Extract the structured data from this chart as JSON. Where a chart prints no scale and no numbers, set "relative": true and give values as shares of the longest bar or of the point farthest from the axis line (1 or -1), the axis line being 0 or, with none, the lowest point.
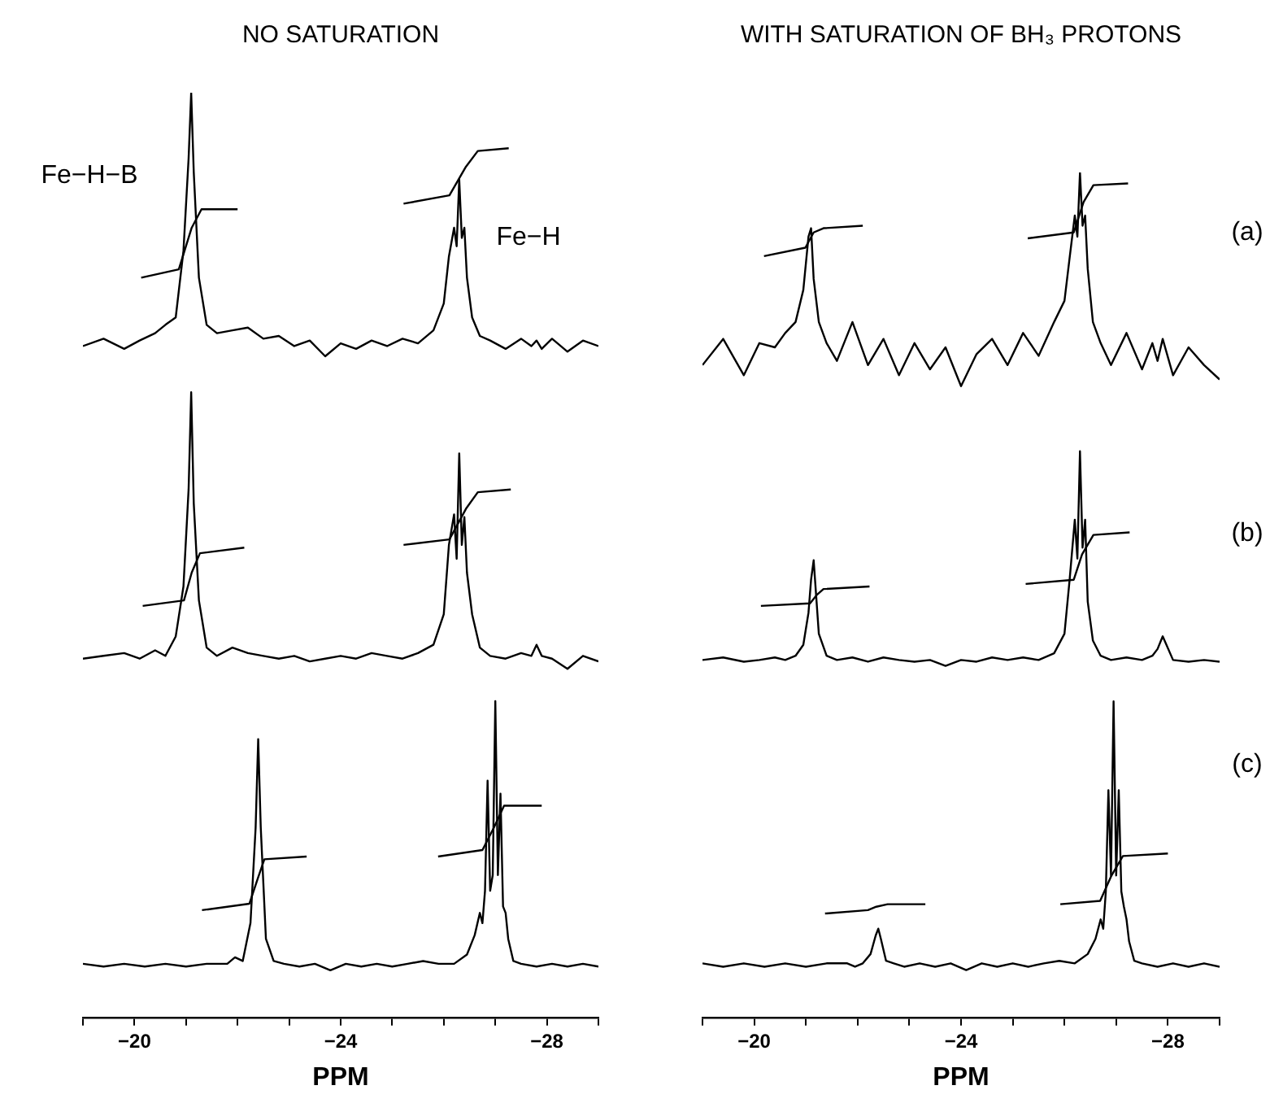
{
  "chart_data": [
    {
      "type": "line",
      "relative": true,
      "title": "NO SATURATION",
      "xlim": [
        -19,
        -29
      ],
      "xlabel": "PPM",
      "xticks": [
        {
          "value": -19,
          "label": null
        },
        -20,
        {
          "value": -21,
          "label": null
        },
        {
          "value": -22,
          "label": null
        },
        {
          "value": -23,
          "label": null
        },
        -24,
        {
          "value": -25,
          "label": null
        },
        {
          "value": -26,
          "label": null
        },
        {
          "value": -27,
          "label": null
        },
        -28,
        {
          "value": -29,
          "label": null
        }
      ],
      "x": [
        -19.0,
        -19.4,
        -19.8,
        -20.1,
        -20.4,
        -20.6,
        -20.8,
        -20.95,
        -21.05,
        -21.1,
        -21.15,
        -21.25,
        -21.4,
        -21.6,
        -21.9,
        -22.2,
        -22.5,
        -22.8,
        -23.1,
        -23.4,
        -23.7,
        -24.0,
        -24.3,
        -24.6,
        -24.9,
        -25.2,
        -25.5,
        -25.8,
        -26.0,
        -26.1,
        -26.2,
        -26.25,
        -26.3,
        -26.35,
        -26.4,
        -26.45,
        -26.55,
        -26.7,
        -26.9,
        -27.2,
        -27.5,
        -27.7,
        -27.8,
        -27.9,
        -28.1,
        -28.4,
        -28.7,
        -29.0
      ],
      "annotations": [
        "Fe−H−B",
        "Fe−H"
      ],
      "series": [
        {
          "color": "#000000",
          "values": [
            0.726,
            0.734,
            0.723,
            0.732,
            0.74,
            0.749,
            0.757,
            0.829,
            0.929,
            1.0,
            0.914,
            0.8,
            0.749,
            0.74,
            0.743,
            0.746,
            0.734,
            0.737,
            0.726,
            0.732,
            0.715,
            0.729,
            0.723,
            0.732,
            0.726,
            0.734,
            0.729,
            0.743,
            0.772,
            0.823,
            0.854,
            0.834,
            0.906,
            0.843,
            0.854,
            0.8,
            0.757,
            0.737,
            0.732,
            0.723,
            0.734,
            0.726,
            0.732,
            0.723,
            0.734,
            0.72,
            0.732,
            0.726
          ]
        },
        {
          "color": "#000000",
          "x": [
            -20.13,
            -20.86,
            -21.11,
            -21.3,
            -22.0
          ],
          "values": [
            0.8,
            0.809,
            0.854,
            0.874,
            0.874
          ]
        },
        {
          "color": "#000000",
          "x": [
            -25.22,
            -26.11,
            -26.43,
            -26.66,
            -27.26
          ],
          "values": [
            0.88,
            0.889,
            0.92,
            0.937,
            0.94
          ]
        },
        {
          "color": "#000000",
          "values": [
            0.388,
            0.391,
            0.394,
            0.388,
            0.397,
            0.391,
            0.412,
            0.466,
            0.571,
            0.676,
            0.556,
            0.451,
            0.4,
            0.391,
            0.4,
            0.394,
            0.391,
            0.388,
            0.391,
            0.385,
            0.388,
            0.391,
            0.388,
            0.394,
            0.391,
            0.388,
            0.394,
            0.403,
            0.436,
            0.511,
            0.544,
            0.496,
            0.61,
            0.511,
            0.541,
            0.481,
            0.436,
            0.4,
            0.391,
            0.388,
            0.394,
            0.391,
            0.403,
            0.391,
            0.388,
            0.377,
            0.391,
            0.385
          ]
        },
        {
          "color": "#000000",
          "x": [
            -20.16,
            -20.96,
            -21.11,
            -21.27,
            -22.13
          ],
          "values": [
            0.445,
            0.451,
            0.481,
            0.502,
            0.508
          ]
        },
        {
          "color": "#000000",
          "x": [
            -25.22,
            -26.11,
            -26.43,
            -26.66,
            -27.3
          ],
          "values": [
            0.511,
            0.517,
            0.55,
            0.568,
            0.571
          ]
        },
        {
          "color": "#000000",
          "x": [
            -19.0,
            -19.4,
            -19.8,
            -20.2,
            -20.6,
            -21.0,
            -21.4,
            -21.8,
            -21.95,
            -22.1,
            -22.25,
            -22.35,
            -22.4,
            -22.45,
            -22.55,
            -22.7,
            -22.9,
            -23.2,
            -23.5,
            -23.8,
            -24.1,
            -24.4,
            -24.7,
            -25.0,
            -25.3,
            -25.6,
            -25.9,
            -26.2,
            -26.45,
            -26.6,
            -26.7,
            -26.75,
            -26.8,
            -26.85,
            -26.9,
            -26.95,
            -27.0,
            -27.05,
            -27.1,
            -27.15,
            -27.2,
            -27.25,
            -27.35,
            -27.5,
            -27.8,
            -28.1,
            -28.4,
            -28.7,
            -29.0
          ],
          "values": [
            0.058,
            0.055,
            0.058,
            0.055,
            0.058,
            0.055,
            0.058,
            0.058,
            0.065,
            0.061,
            0.102,
            0.205,
            0.301,
            0.205,
            0.085,
            0.061,
            0.058,
            0.055,
            0.058,
            0.051,
            0.058,
            0.055,
            0.058,
            0.055,
            0.058,
            0.061,
            0.058,
            0.058,
            0.068,
            0.089,
            0.113,
            0.102,
            0.137,
            0.256,
            0.137,
            0.154,
            0.342,
            0.154,
            0.242,
            0.12,
            0.113,
            0.085,
            0.061,
            0.058,
            0.055,
            0.058,
            0.055,
            0.058,
            0.055
          ]
        },
        {
          "color": "#000000",
          "x": [
            -21.31,
            -22.23,
            -22.39,
            -22.52,
            -23.34
          ],
          "values": [
            0.116,
            0.123,
            0.15,
            0.171,
            0.174
          ]
        },
        {
          "color": "#000000",
          "x": [
            -25.89,
            -26.75,
            -26.97,
            -27.17,
            -27.9
          ],
          "values": [
            0.174,
            0.181,
            0.205,
            0.229,
            0.229
          ]
        }
      ]
    },
    {
      "type": "line",
      "relative": true,
      "title": "WITH SATURATION OF BH₃ PROTONS",
      "xlim": [
        -19,
        -29
      ],
      "xlabel": "PPM",
      "xticks": [
        {
          "value": -19,
          "label": null
        },
        -20,
        {
          "value": -21,
          "label": null
        },
        {
          "value": -22,
          "label": null
        },
        {
          "value": -23,
          "label": null
        },
        -24,
        {
          "value": -25,
          "label": null
        },
        {
          "value": -26,
          "label": null
        },
        {
          "value": -27,
          "label": null
        },
        -28,
        {
          "value": -29,
          "label": null
        }
      ],
      "x": [
        -19.0,
        -19.4,
        -19.8,
        -20.1,
        -20.4,
        -20.6,
        -20.8,
        -20.95,
        -21.05,
        -21.1,
        -21.15,
        -21.25,
        -21.4,
        -21.6,
        -21.9,
        -22.2,
        -22.5,
        -22.8,
        -23.1,
        -23.4,
        -23.7,
        -24.0,
        -24.3,
        -24.6,
        -24.9,
        -25.2,
        -25.5,
        -25.8,
        -26.0,
        -26.1,
        -26.2,
        -26.25,
        -26.3,
        -26.35,
        -26.4,
        -26.45,
        -26.55,
        -26.7,
        -26.9,
        -27.2,
        -27.5,
        -27.7,
        -27.8,
        -27.9,
        -28.1,
        -28.4,
        -28.7,
        -29.0
      ],
      "annotations": [
        "(a)",
        "(b)",
        "(c)"
      ],
      "series": [
        {
          "color": "#000000",
          "values": [
            0.772,
            0.803,
            0.76,
            0.798,
            0.793,
            0.81,
            0.823,
            0.861,
            0.924,
            0.934,
            0.874,
            0.823,
            0.798,
            0.777,
            0.823,
            0.772,
            0.803,
            0.76,
            0.798,
            0.767,
            0.793,
            0.747,
            0.785,
            0.803,
            0.772,
            0.81,
            0.783,
            0.823,
            0.848,
            0.899,
            0.949,
            0.924,
            1.0,
            0.937,
            0.949,
            0.886,
            0.823,
            0.798,
            0.772,
            0.81,
            0.767,
            0.798,
            0.777,
            0.803,
            0.76,
            0.793,
            0.772,
            0.755
          ]
        },
        {
          "color": "#000000",
          "x": [
            -20.19,
            -20.99,
            -21.15,
            -21.34,
            -22.1
          ],
          "values": [
            0.901,
            0.911,
            0.929,
            0.934,
            0.937
          ]
        },
        {
          "color": "#000000",
          "x": [
            -25.29,
            -26.18,
            -26.37,
            -26.56,
            -27.23
          ],
          "values": [
            0.922,
            0.929,
            0.965,
            0.985,
            0.987
          ]
        },
        {
          "color": "#000000",
          "values": [
            0.423,
            0.426,
            0.421,
            0.423,
            0.426,
            0.423,
            0.428,
            0.441,
            0.479,
            0.518,
            0.541,
            0.454,
            0.428,
            0.423,
            0.426,
            0.421,
            0.426,
            0.423,
            0.421,
            0.423,
            0.416,
            0.423,
            0.421,
            0.426,
            0.423,
            0.426,
            0.423,
            0.431,
            0.454,
            0.518,
            0.589,
            0.543,
            0.67,
            0.556,
            0.589,
            0.492,
            0.446,
            0.428,
            0.423,
            0.426,
            0.423,
            0.428,
            0.436,
            0.451,
            0.423,
            0.421,
            0.423,
            0.421
          ]
        },
        {
          "color": "#000000",
          "x": [
            -20.13,
            -21.08,
            -21.21,
            -21.34,
            -22.23
          ],
          "values": [
            0.487,
            0.49,
            0.5,
            0.507,
            0.51
          ]
        },
        {
          "color": "#000000",
          "x": [
            -25.25,
            -26.18,
            -26.34,
            -26.56,
            -27.26
          ],
          "values": [
            0.513,
            0.518,
            0.548,
            0.571,
            0.574
          ]
        },
        {
          "color": "#000000",
          "x": [
            -19.0,
            -19.4,
            -19.8,
            -20.2,
            -20.6,
            -21.0,
            -21.4,
            -21.8,
            -21.95,
            -22.1,
            -22.25,
            -22.35,
            -22.4,
            -22.45,
            -22.55,
            -22.7,
            -22.9,
            -23.2,
            -23.5,
            -23.8,
            -24.1,
            -24.4,
            -24.7,
            -25.0,
            -25.3,
            -25.6,
            -25.9,
            -26.2,
            -26.45,
            -26.6,
            -26.7,
            -26.75,
            -26.8,
            -26.85,
            -26.9,
            -26.95,
            -27.0,
            -27.05,
            -27.1,
            -27.15,
            -27.2,
            -27.25,
            -27.35,
            -27.5,
            -27.8,
            -28.1,
            -28.4,
            -28.7,
            -29.0
          ],
          "values": [
            0.064,
            0.06,
            0.064,
            0.06,
            0.064,
            0.06,
            0.064,
            0.064,
            0.06,
            0.064,
            0.075,
            0.097,
            0.105,
            0.093,
            0.067,
            0.064,
            0.06,
            0.064,
            0.06,
            0.064,
            0.056,
            0.064,
            0.06,
            0.064,
            0.06,
            0.064,
            0.067,
            0.064,
            0.075,
            0.093,
            0.116,
            0.105,
            0.149,
            0.269,
            0.168,
            0.374,
            0.168,
            0.269,
            0.149,
            0.131,
            0.116,
            0.09,
            0.067,
            0.064,
            0.06,
            0.064,
            0.06,
            0.064,
            0.06
          ]
        },
        {
          "color": "#000000",
          "x": [
            -21.37,
            -22.2,
            -22.36,
            -22.58,
            -23.31
          ],
          "values": [
            0.123,
            0.127,
            0.131,
            0.134,
            0.134
          ]
        },
        {
          "color": "#000000",
          "x": [
            -25.92,
            -26.69,
            -26.91,
            -27.13,
            -28.0
          ],
          "values": [
            0.134,
            0.138,
            0.168,
            0.191,
            0.194
          ]
        }
      ]
    }
  ]
}
